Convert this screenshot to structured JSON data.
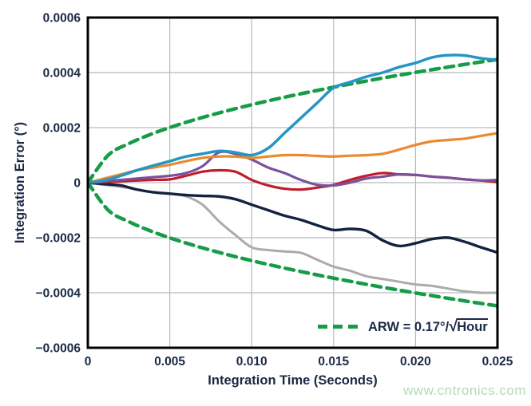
{
  "watermark": "www.cntronics.com",
  "chart_data": {
    "type": "line",
    "title": "",
    "xlabel": "Integration Time (Seconds)",
    "ylabel": "Integration Error (°)",
    "xlim": [
      0,
      0.025
    ],
    "ylim": [
      -0.0006,
      0.0006
    ],
    "grid": true,
    "legend": {
      "position": "lower-right-inside",
      "prefix": "ARW = 0.17°/",
      "sqrt_symbol": "√",
      "radicand": "Hour",
      "full_text": "ARW = 0.17°/√Hour",
      "color": "#169c47"
    },
    "x_ticks": [
      {
        "v": 0,
        "label": "0"
      },
      {
        "v": 0.005,
        "label": "0.005"
      },
      {
        "v": 0.01,
        "label": "0.010"
      },
      {
        "v": 0.015,
        "label": "0.015"
      },
      {
        "v": 0.02,
        "label": "0.020"
      },
      {
        "v": 0.025,
        "label": "0.025"
      }
    ],
    "y_ticks": [
      {
        "v": 0.0006,
        "label": "0.0006"
      },
      {
        "v": 0.0004,
        "label": "0.0004"
      },
      {
        "v": 0.0002,
        "label": "0.0002"
      },
      {
        "v": 0,
        "label": "0"
      },
      {
        "v": -0.0002,
        "label": "−0.0002"
      },
      {
        "v": -0.0004,
        "label": "−0.0004"
      },
      {
        "v": -0.0006,
        "label": "−0.0006"
      }
    ],
    "envelope": {
      "name": "arw-envelope",
      "label": "ARW = 0.17°/√Hour",
      "arw_deg_per_sqrt_hour": 0.17,
      "color": "#169c47",
      "dashed": true,
      "x": [
        0,
        0.00125,
        0.0025,
        0.00375,
        0.005,
        0.00625,
        0.0075,
        0.00875,
        0.01,
        0.01125,
        0.0125,
        0.01375,
        0.015,
        0.01625,
        0.0175,
        0.01875,
        0.02,
        0.02125,
        0.0225,
        0.02375,
        0.025
      ],
      "upper": [
        0,
        0.0001002,
        0.0001417,
        0.0001736,
        0.0002004,
        0.000224,
        0.0002454,
        0.0002651,
        0.0002833,
        0.0003005,
        0.0003168,
        0.0003322,
        0.000347,
        0.0003612,
        0.0003749,
        0.000388,
        0.0004008,
        0.000413,
        0.000425,
        0.0004366,
        0.0004479
      ],
      "lower": [
        0,
        -0.0001002,
        -0.0001417,
        -0.0001736,
        -0.0002004,
        -0.000224,
        -0.0002454,
        -0.0002651,
        -0.0002833,
        -0.0003005,
        -0.0003168,
        -0.0003322,
        -0.000347,
        -0.0003612,
        -0.0003749,
        -0.000388,
        -0.0004008,
        -0.000413,
        -0.000425,
        -0.0004366,
        -0.0004479
      ]
    },
    "x": [
      0,
      0.001,
      0.002,
      0.003,
      0.004,
      0.005,
      0.006,
      0.007,
      0.008,
      0.009,
      0.01,
      0.011,
      0.012,
      0.013,
      0.014,
      0.015,
      0.016,
      0.017,
      0.018,
      0.019,
      0.02,
      0.021,
      0.022,
      0.023,
      0.024,
      0.025
    ],
    "series": [
      {
        "name": "trace-gray",
        "color": "#ababab",
        "width": 3,
        "values": [
          0,
          -8e-06,
          -1.5e-05,
          -2.5e-05,
          -3.5e-05,
          -4e-05,
          -5e-05,
          -8e-05,
          -0.00014,
          -0.00019,
          -0.000235,
          -0.000245,
          -0.00025,
          -0.000255,
          -0.00028,
          -0.000305,
          -0.00032,
          -0.00034,
          -0.00035,
          -0.00036,
          -0.00037,
          -0.000375,
          -0.000385,
          -0.000395,
          -0.0004,
          -0.0004
        ]
      },
      {
        "name": "trace-navy",
        "color": "#13233f",
        "width": 3.4,
        "values": [
          0,
          -5e-06,
          -1e-05,
          -2.5e-05,
          -3.5e-05,
          -4e-05,
          -4.5e-05,
          -4.8e-05,
          -5e-05,
          -6e-05,
          -8e-05,
          -0.0001,
          -0.00012,
          -0.000135,
          -0.000155,
          -0.000172,
          -0.000168,
          -0.000175,
          -0.00021,
          -0.00023,
          -0.00022,
          -0.000205,
          -0.0002,
          -0.000215,
          -0.000235,
          -0.000254
        ]
      },
      {
        "name": "trace-crimson",
        "color": "#be1e2d",
        "width": 3.2,
        "values": [
          0,
          2e-06,
          5e-06,
          8e-06,
          1e-05,
          1.2e-05,
          2.5e-05,
          4e-05,
          4.5e-05,
          4e-05,
          1e-05,
          -1e-05,
          -2.2e-05,
          -2.5e-05,
          -1.8e-05,
          -8e-06,
          1e-05,
          2.5e-05,
          3.5e-05,
          3e-05,
          2.8e-05,
          2.2e-05,
          1.8e-05,
          1.2e-05,
          8e-06,
          2e-06
        ]
      },
      {
        "name": "trace-purple",
        "color": "#7b519d",
        "width": 3.2,
        "values": [
          0,
          5e-06,
          1e-05,
          1.5e-05,
          2e-05,
          2.5e-05,
          3.5e-05,
          6e-05,
          0.00011,
          0.000105,
          8.4e-05,
          5.5e-05,
          3.5e-05,
          1e-05,
          -8e-06,
          -1e-05,
          0,
          1.5e-05,
          2.2e-05,
          3e-05,
          2.8e-05,
          2.2e-05,
          1.8e-05,
          1.2e-05,
          8e-06,
          1e-05
        ]
      },
      {
        "name": "trace-orange",
        "color": "#e98a2f",
        "width": 3.2,
        "values": [
          0,
          1.5e-05,
          3e-05,
          4.5e-05,
          5.5e-05,
          6.5e-05,
          7.8e-05,
          9e-05,
          9.5e-05,
          9.5e-05,
          9e-05,
          9.5e-05,
          0.0001,
          0.0001,
          9.7e-05,
          9.5e-05,
          9.8e-05,
          0.0001,
          0.000105,
          0.00012,
          0.000137,
          0.00015,
          0.000155,
          0.00016,
          0.00017,
          0.00018
        ]
      },
      {
        "name": "trace-cyan",
        "color": "#2596c4",
        "width": 3.5,
        "values": [
          0,
          8e-06,
          2.5e-05,
          4.5e-05,
          6.2e-05,
          7.8e-05,
          9.5e-05,
          0.000105,
          0.000115,
          0.00011,
          0.0001,
          0.000125,
          0.00018,
          0.000235,
          0.00029,
          0.000345,
          0.000365,
          0.000385,
          0.0004,
          0.00042,
          0.000435,
          0.000455,
          0.000463,
          0.000462,
          0.000452,
          0.000446
        ]
      }
    ],
    "style": {
      "grid_color": "#b5bac0",
      "frame_color": "#000000",
      "text_color": "#1b2945",
      "tick_font_size": 15.5,
      "axis_title_font_size": 16.5
    }
  }
}
